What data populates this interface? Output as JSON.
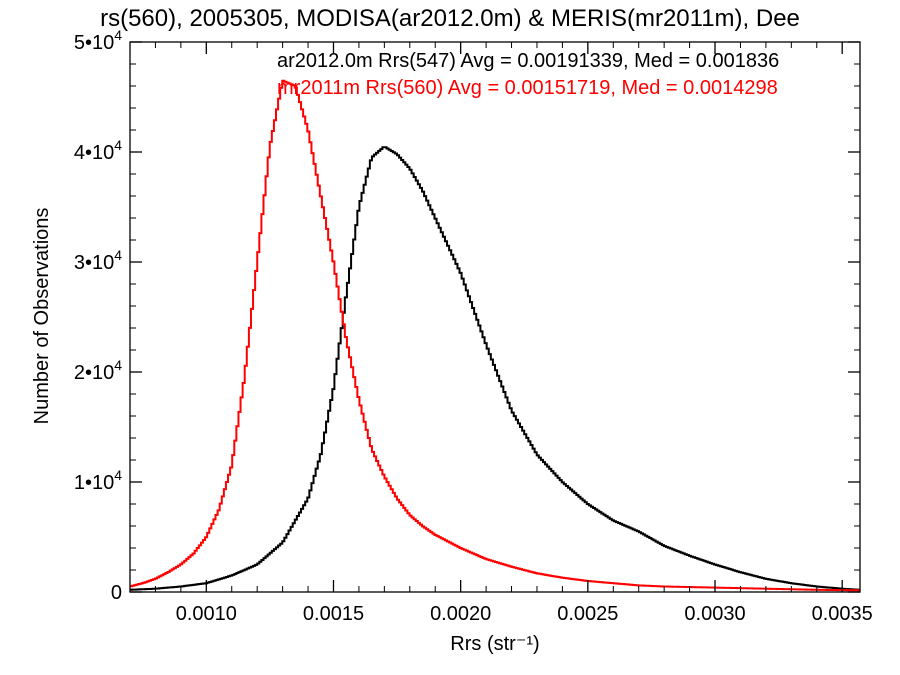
{
  "chart_data": {
    "type": "line",
    "title": "rs(560), 2005305, MODISA(ar2012.0m) & MERIS(mr2011m), Dee",
    "xlabel": "Rrs (str⁻¹)",
    "ylabel": "Number of Observations",
    "xlim": [
      0.0007,
      0.00357
    ],
    "ylim": [
      0,
      50000
    ],
    "x_ticks": [
      "0.0010",
      "0.0015",
      "0.0020",
      "0.0025",
      "0.0030",
      "0.0035"
    ],
    "y_ticks": [
      {
        "value": 0,
        "mantissa": "0",
        "exponent": ""
      },
      {
        "value": 10000,
        "mantissa": "1•10",
        "exponent": "4"
      },
      {
        "value": 20000,
        "mantissa": "2•10",
        "exponent": "4"
      },
      {
        "value": 30000,
        "mantissa": "3•10",
        "exponent": "4"
      },
      {
        "value": 40000,
        "mantissa": "4•10",
        "exponent": "4"
      },
      {
        "value": 50000,
        "mantissa": "5•10",
        "exponent": "4"
      }
    ],
    "grid": false,
    "legend_placement": "top-right",
    "series": [
      {
        "name": "ar2012.0m Rrs(547) Avg = 0.00191339, Med = 0.001836",
        "color": "#000000",
        "x": [
          0.0007,
          0.0008,
          0.0009,
          0.001,
          0.0011,
          0.0012,
          0.0013,
          0.0014,
          0.00145,
          0.0015,
          0.00155,
          0.0016,
          0.00165,
          0.0017,
          0.00175,
          0.0018,
          0.00185,
          0.0019,
          0.002,
          0.0021,
          0.0022,
          0.0023,
          0.0024,
          0.0025,
          0.0026,
          0.0027,
          0.0028,
          0.0029,
          0.003,
          0.0031,
          0.0032,
          0.0033,
          0.0034,
          0.0035,
          0.00357
        ],
        "y": [
          200,
          300,
          500,
          800,
          1500,
          2500,
          4500,
          8500,
          12500,
          18500,
          27000,
          35000,
          39500,
          40500,
          39800,
          38500,
          36500,
          34000,
          29000,
          22500,
          16500,
          12500,
          10000,
          8000,
          6500,
          5500,
          4200,
          3300,
          2500,
          1800,
          1200,
          800,
          500,
          300,
          200
        ]
      },
      {
        "name": "mr2011m Rrs(560) Avg = 0.00151719, Med = 0.0014298",
        "color": "#ff0000",
        "x": [
          0.0007,
          0.00075,
          0.0008,
          0.00085,
          0.0009,
          0.00095,
          0.001,
          0.00105,
          0.0011,
          0.00115,
          0.0012,
          0.00125,
          0.0013,
          0.00135,
          0.0014,
          0.00145,
          0.0015,
          0.00155,
          0.0016,
          0.00165,
          0.0017,
          0.00175,
          0.0018,
          0.00185,
          0.0019,
          0.002,
          0.0021,
          0.0022,
          0.0023,
          0.0024,
          0.0025,
          0.0026,
          0.0027,
          0.0028,
          0.003,
          0.0032,
          0.0034,
          0.00357
        ],
        "y": [
          500,
          800,
          1200,
          1800,
          2500,
          3500,
          5000,
          7500,
          11500,
          19500,
          30000,
          40500,
          46500,
          46000,
          42000,
          36000,
          30000,
          23000,
          17500,
          13000,
          10500,
          8500,
          7000,
          6000,
          5200,
          4000,
          3000,
          2300,
          1700,
          1300,
          1000,
          800,
          600,
          500,
          400,
          300,
          200,
          150
        ]
      }
    ]
  }
}
